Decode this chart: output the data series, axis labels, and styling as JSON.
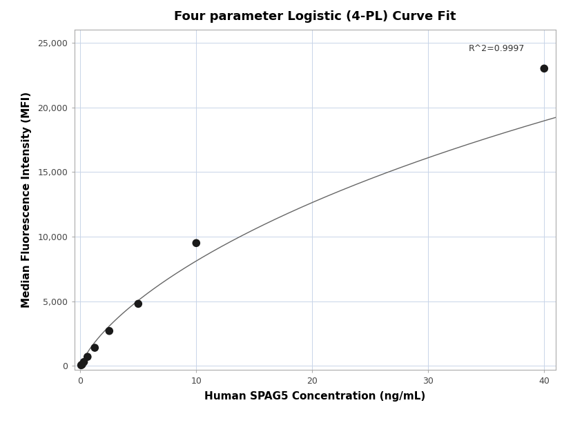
{
  "title": "Four parameter Logistic (4-PL) Curve Fit",
  "xlabel": "Human SPAG5 Concentration (ng/mL)",
  "ylabel": "Median Fluorescence Intensity (MFI)",
  "scatter_x": [
    0.078,
    0.156,
    0.313,
    0.625,
    1.25,
    2.5,
    5.0,
    10.0,
    40.0
  ],
  "scatter_y": [
    50,
    100,
    300,
    700,
    1400,
    2700,
    4800,
    9500,
    23000
  ],
  "r_squared": "R^2=0.9997",
  "xlim": [
    -0.5,
    41
  ],
  "ylim": [
    -300,
    26000
  ],
  "xticks": [
    0,
    10,
    20,
    30,
    40
  ],
  "yticks": [
    0,
    5000,
    10000,
    15000,
    20000,
    25000
  ],
  "ytick_labels": [
    "0",
    "5,000",
    "10,000",
    "15,000",
    "20,000",
    "25,000"
  ],
  "bg_color": "#ffffff",
  "grid_color": "#c8d4e8",
  "scatter_color": "#1a1a1a",
  "line_color": "#666666",
  "title_fontsize": 13,
  "label_fontsize": 11,
  "tick_fontsize": 9,
  "annotation_fontsize": 9,
  "scatter_size": 70,
  "4pl_A": -200.0,
  "4pl_B": 0.72,
  "4pl_C": 200.0,
  "4pl_D": 80000.0
}
